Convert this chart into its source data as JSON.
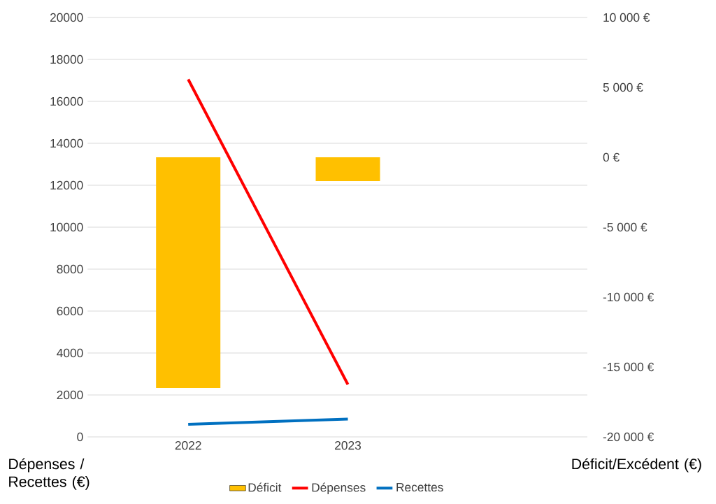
{
  "chart_data": {
    "type": "bar",
    "categories": [
      "2022",
      "2023",
      null
    ],
    "series": [
      {
        "name": "Déficit",
        "axis": "y2",
        "color": "#ffc000",
        "values": [
          -16500,
          -1700,
          null
        ]
      },
      {
        "name": "Dépenses",
        "type": "line",
        "color": "#ff0000",
        "values": [
          17050,
          2500,
          null
        ]
      },
      {
        "name": "Recettes",
        "type": "line",
        "color": "#0070c0",
        "values": [
          600,
          850,
          null
        ]
      }
    ],
    "ylabel": "Dépenses / Recettes (€)",
    "y2label": "Déficit/Excédent (€)",
    "ylim": [
      0,
      20000
    ],
    "yticks": [
      0,
      2000,
      4000,
      6000,
      8000,
      10000,
      12000,
      14000,
      16000,
      18000,
      20000
    ],
    "y2lim": [
      -20000,
      10000
    ],
    "y2ticks": [
      {
        "value": -20000,
        "label": "-20 000 €"
      },
      {
        "value": -15000,
        "label": "-15 000 €"
      },
      {
        "value": -10000,
        "label": "-10 000 €"
      },
      {
        "value": -5000,
        "label": "-5 000 €"
      },
      {
        "value": 0,
        "label": "0 €"
      },
      {
        "value": 5000,
        "label": "5 000 €"
      },
      {
        "value": 10000,
        "label": "10 000 €"
      }
    ],
    "grid": "y",
    "legend": "bottom"
  }
}
